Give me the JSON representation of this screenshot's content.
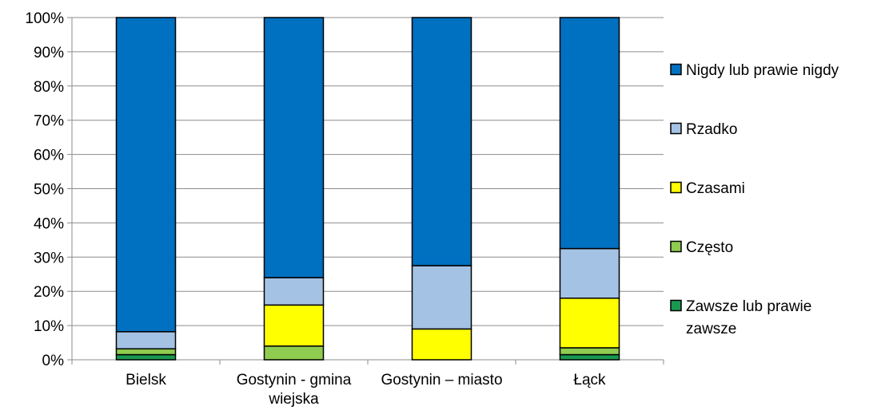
{
  "chart_data": {
    "type": "bar",
    "stacked": true,
    "percent": true,
    "categories": [
      "Bielsk",
      "Gostynin - gmina wiejska",
      "Gostynin – miasto",
      "Łąck"
    ],
    "category_lines": [
      [
        "Bielsk"
      ],
      [
        "Gostynin - gmina",
        "wiejska"
      ],
      [
        "Gostynin – miasto"
      ],
      [
        "Łąck"
      ]
    ],
    "ylim": [
      0,
      100
    ],
    "yticks": [
      "0%",
      "10%",
      "20%",
      "30%",
      "40%",
      "50%",
      "60%",
      "70%",
      "80%",
      "90%",
      "100%"
    ],
    "legend_position": "right",
    "series": [
      {
        "name": "Zawsze lub prawie zawsze",
        "legend_lines": [
          "Zawsze lub prawie",
          "zawsze"
        ],
        "color": "#1a9850",
        "values": [
          1.5,
          0,
          0,
          1.5
        ]
      },
      {
        "name": "Często",
        "legend_lines": [
          "Często"
        ],
        "color": "#8fcc4f",
        "values": [
          1.7,
          4,
          0,
          2
        ]
      },
      {
        "name": "Czasami",
        "legend_lines": [
          "Czasami"
        ],
        "color": "#ffff00",
        "values": [
          0,
          12,
          9,
          14.5
        ]
      },
      {
        "name": "Rzadko",
        "legend_lines": [
          "Rzadko"
        ],
        "color": "#a4c2e4",
        "values": [
          5,
          8,
          18.5,
          14.5
        ]
      },
      {
        "name": "Nigdy lub prawie nigdy",
        "legend_lines": [
          "Nigdy lub prawie nigdy"
        ],
        "color": "#0070c0",
        "values": [
          91.8,
          76,
          72.5,
          67.5
        ]
      }
    ]
  }
}
